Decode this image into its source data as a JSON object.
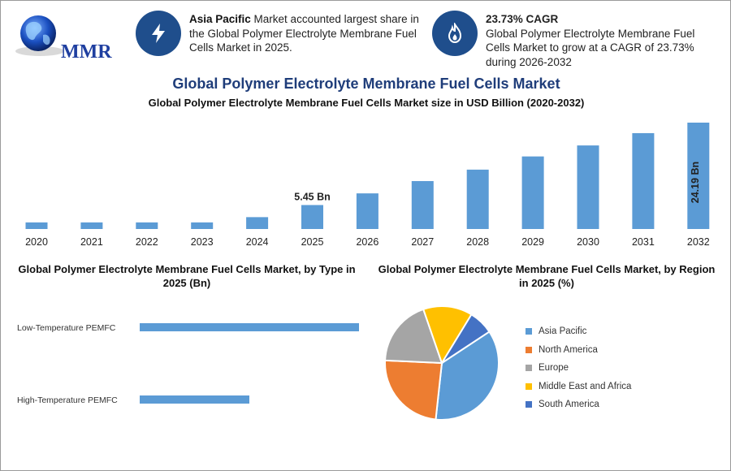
{
  "logo": {
    "text": "MMR"
  },
  "callouts": [
    {
      "icon": "lightning-icon",
      "bold": "Asia Pacific",
      "text": " Market accounted largest share in the Global Polymer Electrolyte Membrane Fuel Cells Market in 2025."
    },
    {
      "icon": "growth-flame-icon",
      "bold": "23.73% CAGR",
      "text": "Global Polymer Electrolyte Membrane Fuel Cells Market to grow at a CAGR of 23.73% during 2026-2032"
    }
  ],
  "main_title": "Global Polymer Electrolyte Membrane Fuel Cells Market",
  "colors": {
    "bar": "#5b9bd5",
    "title": "#1f3d7a",
    "icon_circle": "#1f4e8c"
  },
  "chart_data": [
    {
      "type": "bar",
      "title": "Global Polymer Electrolyte Membrane Fuel Cells Market size in USD Billion (2020-2032)",
      "categories": [
        "2020",
        "2021",
        "2022",
        "2023",
        "2024",
        "2025",
        "2026",
        "2027",
        "2028",
        "2029",
        "2030",
        "2031",
        "2032"
      ],
      "values": [
        1.5,
        1.5,
        1.5,
        1.5,
        2.7,
        5.45,
        8.1,
        10.9,
        13.5,
        16.5,
        19.0,
        21.8,
        24.19
      ],
      "data_labels": {
        "2025": "5.45 Bn",
        "2032": "24.19 Bn"
      },
      "ylim": [
        0,
        24.19
      ],
      "grid": false
    },
    {
      "type": "bar",
      "orientation": "horizontal",
      "title": "Global Polymer Electrolyte Membrane Fuel Cells Market, by Type in 2025 (Bn)",
      "categories": [
        "Low-Temperature PEMFC",
        "High-Temperature PEMFC"
      ],
      "values": [
        3.6,
        1.8
      ],
      "xlim": [
        0,
        3.6
      ]
    },
    {
      "type": "pie",
      "title": "Global Polymer Electrolyte Membrane Fuel Cells Market, by Region in 2025 (%)",
      "categories": [
        "Asia Pacific",
        "North America",
        "Europe",
        "Middle East and Africa",
        "South America"
      ],
      "values": [
        36,
        24,
        19,
        14,
        7
      ],
      "colors": [
        "#5b9bd5",
        "#ed7d31",
        "#a5a5a5",
        "#ffc000",
        "#4472c4"
      ],
      "legend": "right"
    }
  ]
}
